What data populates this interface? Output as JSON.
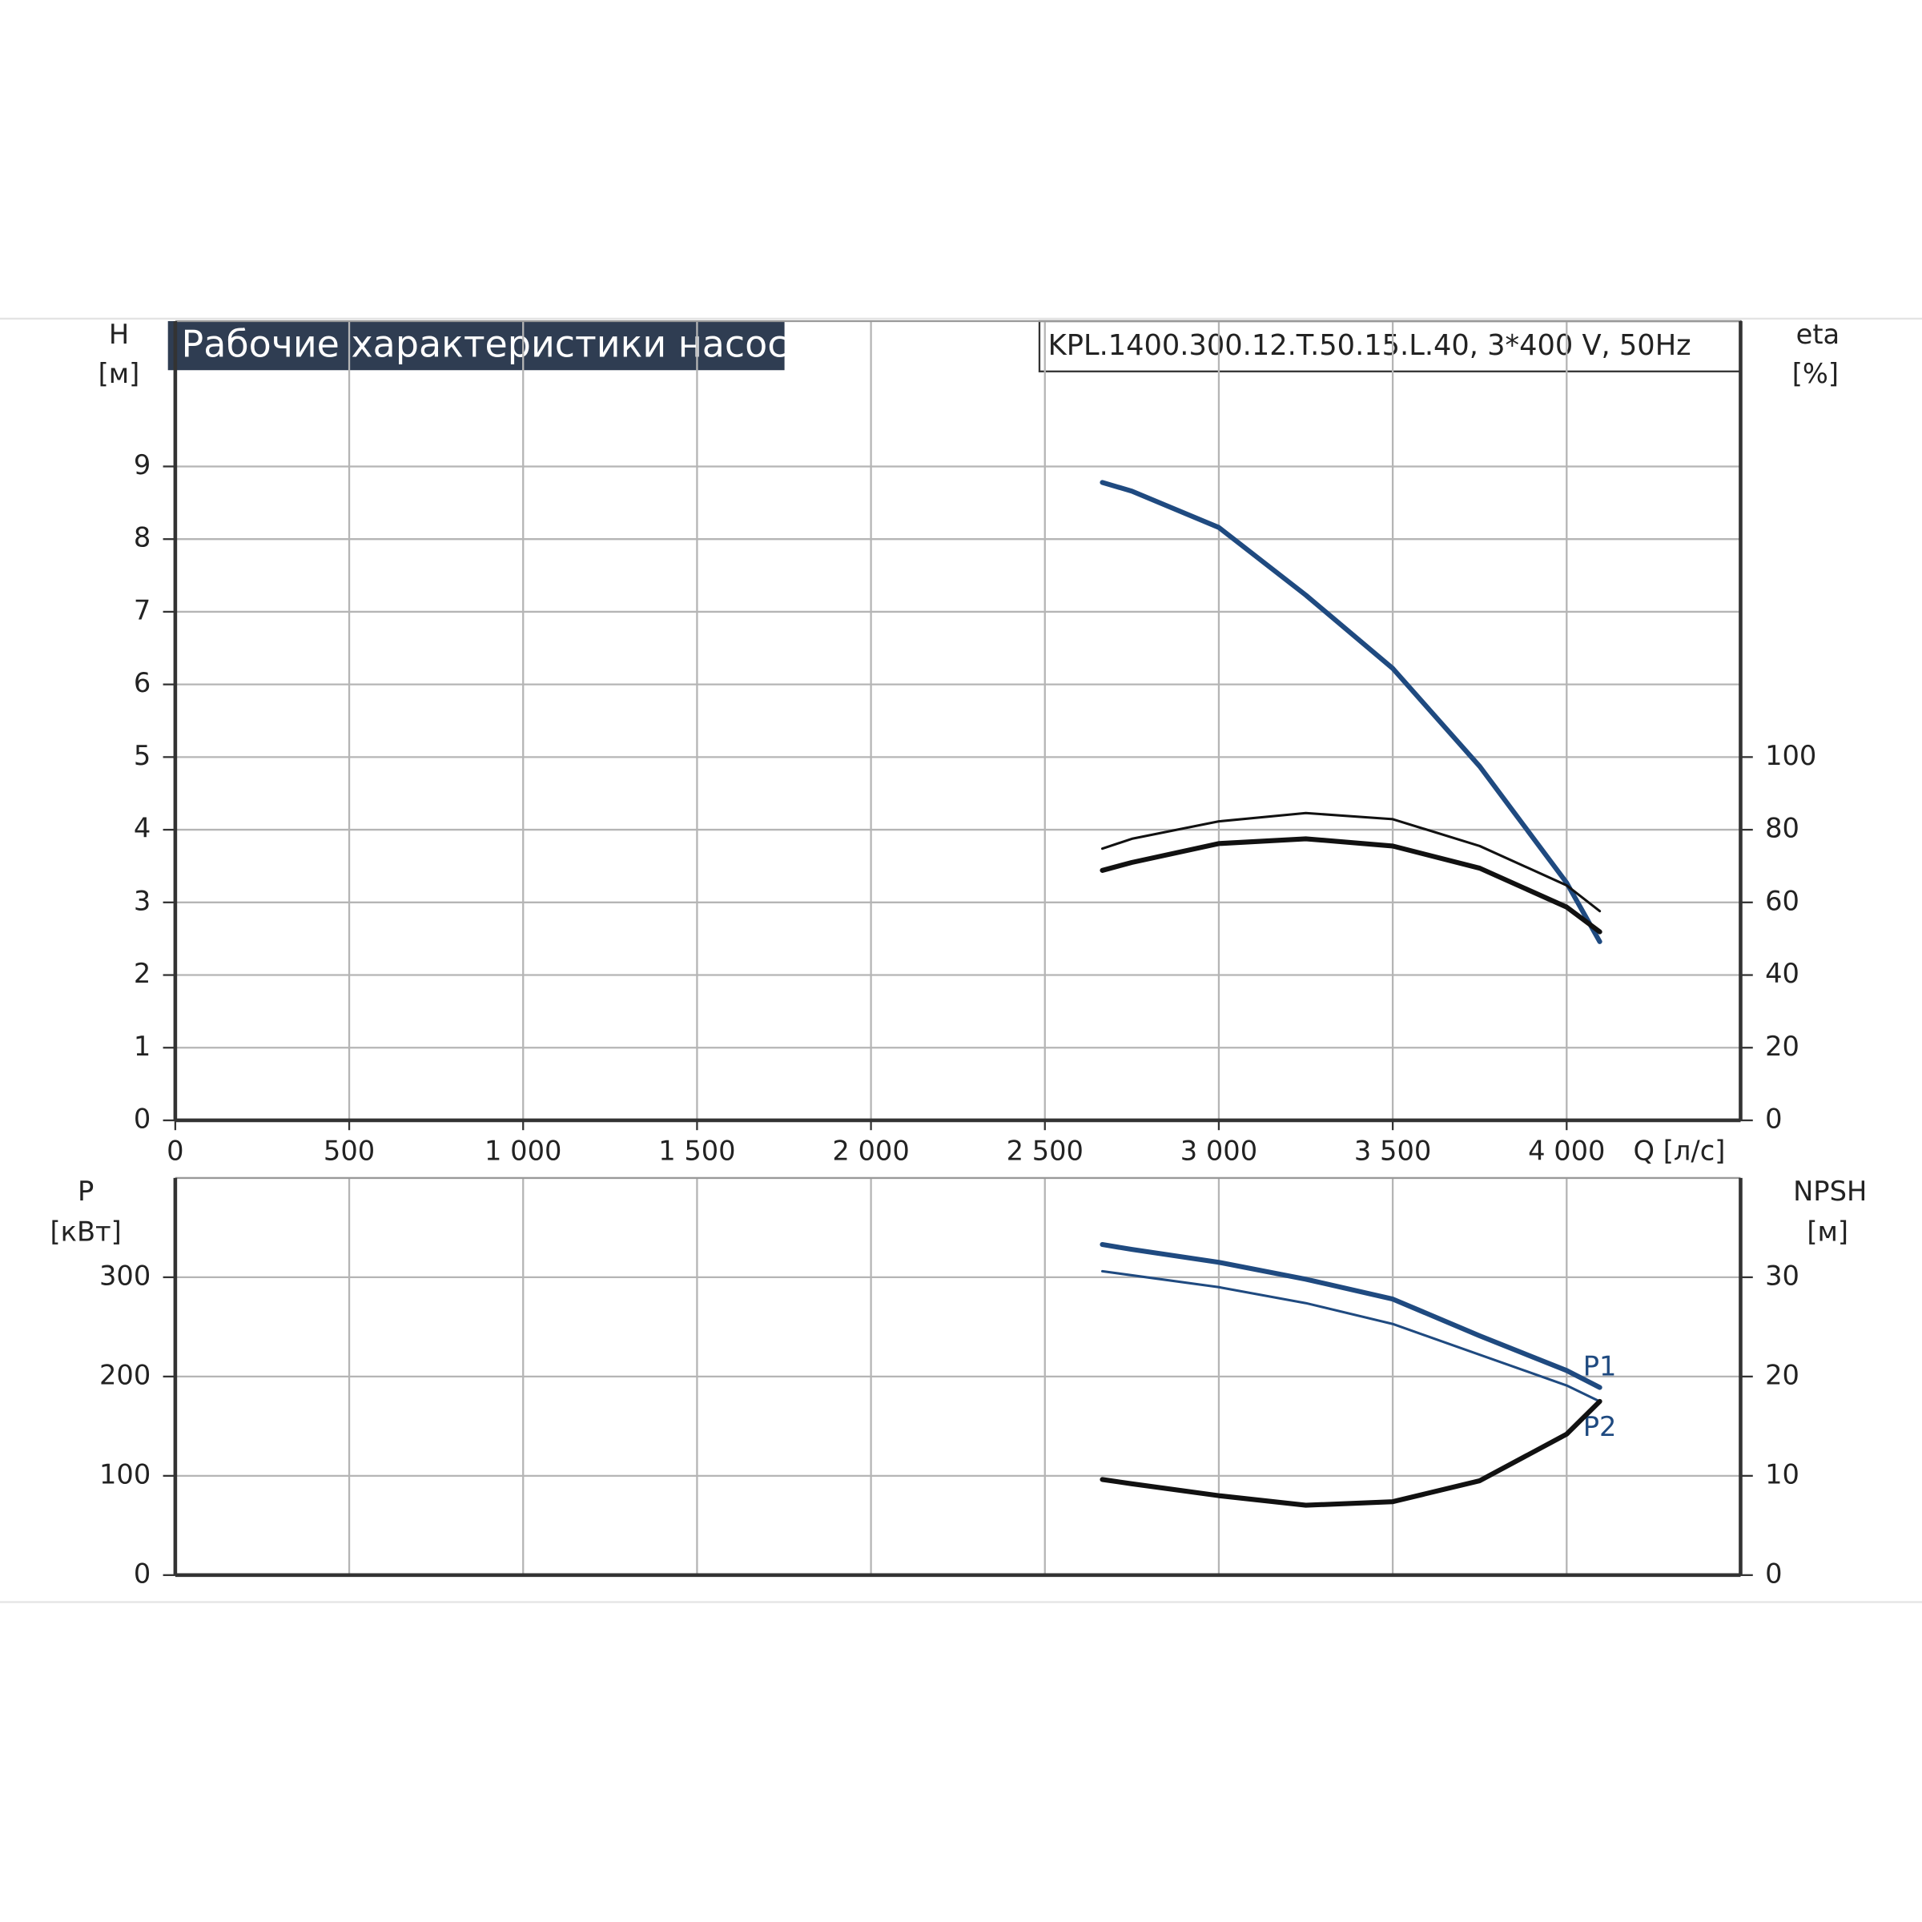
{
  "chart_data": [
    {
      "type": "line",
      "title": "Рабочие характеристики насоса",
      "subtitle": "KPL.1400.300.12.T.50.15.L.40, 3*400 V, 50Hz",
      "ylabel": [
        "H",
        "[м]"
      ],
      "y2label": [
        "eta",
        "[%]"
      ],
      "xlabel": "Q [л/с]",
      "x": [
        2665,
        2750,
        3000,
        3250,
        3500,
        3750,
        4000,
        4095
      ],
      "xlim": [
        0,
        4500
      ],
      "xticks": [
        0,
        500,
        {
          "value": 1000,
          "label": "1 000"
        },
        {
          "value": 1500,
          "label": "1 500"
        },
        {
          "value": 2000,
          "label": "2 000"
        },
        {
          "value": 2500,
          "label": "2 500"
        },
        {
          "value": 3000,
          "label": "3 000"
        },
        {
          "value": 3500,
          "label": "3 500"
        },
        {
          "value": 4000,
          "label": "4 000"
        }
      ],
      "ylim": [
        0,
        11
      ],
      "yticks": [
        0,
        1,
        2,
        3,
        4,
        5,
        6,
        7,
        8,
        9
      ],
      "y2lim": [
        0,
        220
      ],
      "y2ticks": [
        0,
        20,
        40,
        60,
        80,
        100
      ],
      "grid": true,
      "series": [
        {
          "color": "#1f4a80",
          "linewidth": 4,
          "values": [
            8.78,
            8.66,
            8.16,
            7.23,
            6.22,
            4.87,
            3.27,
            2.46
          ]
        },
        {
          "color": "#111111",
          "linewidth": 2,
          "axis": "y2",
          "values": [
            74.8,
            77.5,
            82.3,
            84.6,
            82.9,
            75.5,
            64.7,
            57.6
          ]
        },
        {
          "color": "#111111",
          "linewidth": 4,
          "axis": "y2",
          "values": [
            68.8,
            71.0,
            76.2,
            77.5,
            75.5,
            69.4,
            58.7,
            51.9
          ]
        }
      ]
    },
    {
      "type": "line",
      "ylabel": [
        "P",
        "[кВт]"
      ],
      "y2label": [
        "NPSH",
        "[м]"
      ],
      "x": [
        2665,
        2750,
        3000,
        3250,
        3500,
        3750,
        4000,
        4095
      ],
      "xlim": [
        0,
        4500
      ],
      "ylim": [
        0,
        400
      ],
      "yticks": [
        0,
        100,
        200,
        300
      ],
      "y2lim": [
        0,
        40
      ],
      "y2ticks": [
        0,
        10,
        20,
        30
      ],
      "grid": true,
      "series": [
        {
          "name": "P1",
          "color": "#1f4a80",
          "linewidth": 4,
          "values": [
            333,
            328,
            315,
            298,
            278,
            241,
            206,
            189
          ]
        },
        {
          "name": "P2",
          "color": "#1f4a80",
          "linewidth": 2,
          "values": [
            306,
            302,
            290,
            274,
            253,
            222,
            191,
            175
          ]
        },
        {
          "color": "#111111",
          "linewidth": 4,
          "axis": "y2",
          "values": [
            9.63,
            9.2,
            8.0,
            7.04,
            7.4,
            9.5,
            14.2,
            17.5
          ]
        }
      ]
    }
  ]
}
